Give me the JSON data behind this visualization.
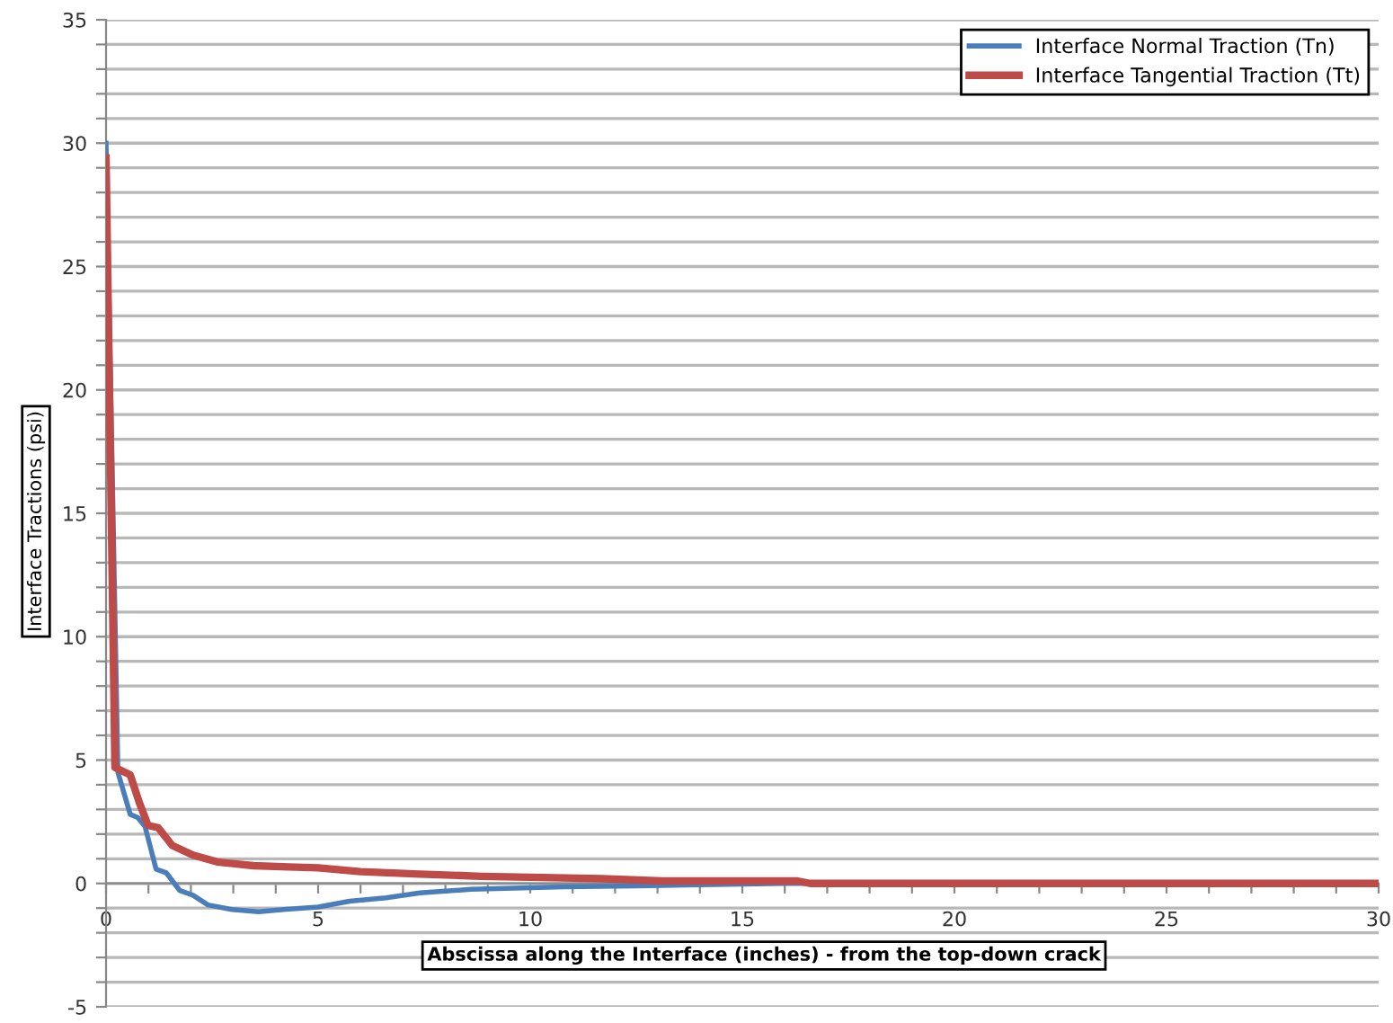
{
  "chart_data": {
    "type": "line",
    "xlabel": "Abscissa along the Interface (inches) - from the top-down crack",
    "ylabel": "Interface Tractions (psi)",
    "series": [
      {
        "name": "Interface Normal Traction (Tn)",
        "color": "#4a7ebb",
        "x": [
          0,
          0.28,
          0.57,
          0.75,
          0.92,
          1.18,
          1.42,
          1.74,
          2.05,
          2.4,
          2.97,
          3.6,
          4.18,
          5,
          5.74,
          6.6,
          7.4,
          8.6,
          9.6,
          10.8,
          12.5,
          14,
          16,
          22
        ],
        "values": [
          30,
          4.5,
          2.8,
          2.67,
          2.3,
          0.58,
          0.43,
          -0.29,
          -0.48,
          -0.87,
          -1.06,
          -1.15,
          -1.06,
          -0.96,
          -0.72,
          -0.58,
          -0.38,
          -0.24,
          -0.19,
          -0.14,
          -0.1,
          -0.05,
          0,
          0
        ]
      },
      {
        "name": "Interface Tangential Traction (Tt)",
        "color": "#be4b48",
        "x": [
          0,
          0.21,
          0.57,
          0.78,
          0.99,
          1.23,
          1.56,
          2.05,
          2.62,
          3.47,
          4.3,
          5,
          6,
          7.4,
          8.85,
          10.3,
          11.7,
          13.1,
          16.3,
          16.6,
          30
        ],
        "values": [
          29.4,
          4.7,
          4.4,
          3.3,
          2.35,
          2.26,
          1.54,
          1.15,
          0.87,
          0.72,
          0.67,
          0.63,
          0.48,
          0.38,
          0.29,
          0.24,
          0.19,
          0.1,
          0.1,
          0,
          0
        ]
      }
    ],
    "xlim": [
      0,
      30
    ],
    "xticks": [
      0,
      {
        "value": 1,
        "label": null
      },
      {
        "value": 2,
        "label": null
      },
      {
        "value": 3,
        "label": null
      },
      {
        "value": 4,
        "label": null
      },
      5,
      {
        "value": 6,
        "label": null
      },
      {
        "value": 7,
        "label": null
      },
      {
        "value": 8,
        "label": null
      },
      {
        "value": 9,
        "label": null
      },
      10,
      {
        "value": 11,
        "label": null
      },
      {
        "value": 12,
        "label": null
      },
      {
        "value": 13,
        "label": null
      },
      {
        "value": 14,
        "label": null
      },
      15,
      {
        "value": 16,
        "label": null
      },
      {
        "value": 17,
        "label": null
      },
      {
        "value": 18,
        "label": null
      },
      {
        "value": 19,
        "label": null
      },
      20,
      {
        "value": 21,
        "label": null
      },
      {
        "value": 22,
        "label": null
      },
      {
        "value": 23,
        "label": null
      },
      {
        "value": 24,
        "label": null
      },
      25,
      {
        "value": 26,
        "label": null
      },
      {
        "value": 27,
        "label": null
      },
      {
        "value": 28,
        "label": null
      },
      {
        "value": 29,
        "label": null
      },
      30
    ],
    "ylim": [
      -5,
      35
    ],
    "yticks": [
      -5,
      {
        "value": -4,
        "label": null
      },
      {
        "value": -3,
        "label": null
      },
      {
        "value": -2,
        "label": null
      },
      {
        "value": -1,
        "label": null
      },
      0,
      {
        "value": 1,
        "label": null
      },
      {
        "value": 2,
        "label": null
      },
      {
        "value": 3,
        "label": null
      },
      {
        "value": 4,
        "label": null
      },
      5,
      {
        "value": 6,
        "label": null
      },
      {
        "value": 7,
        "label": null
      },
      {
        "value": 8,
        "label": null
      },
      {
        "value": 9,
        "label": null
      },
      10,
      {
        "value": 11,
        "label": null
      },
      {
        "value": 12,
        "label": null
      },
      {
        "value": 13,
        "label": null
      },
      {
        "value": 14,
        "label": null
      },
      15,
      {
        "value": 16,
        "label": null
      },
      {
        "value": 17,
        "label": null
      },
      {
        "value": 18,
        "label": null
      },
      {
        "value": 19,
        "label": null
      },
      20,
      {
        "value": 21,
        "label": null
      },
      {
        "value": 22,
        "label": null
      },
      {
        "value": 23,
        "label": null
      },
      {
        "value": 24,
        "label": null
      },
      25,
      {
        "value": 26,
        "label": null
      },
      {
        "value": 27,
        "label": null
      },
      {
        "value": 28,
        "label": null
      },
      {
        "value": 29,
        "label": null
      },
      30,
      {
        "value": 31,
        "label": null
      },
      {
        "value": 32,
        "label": null
      },
      {
        "value": 33,
        "label": null
      },
      {
        "value": 34,
        "label": null
      },
      35
    ],
    "grid": "y",
    "legend": "top right",
    "marker": "none",
    "line_style": "solid"
  }
}
